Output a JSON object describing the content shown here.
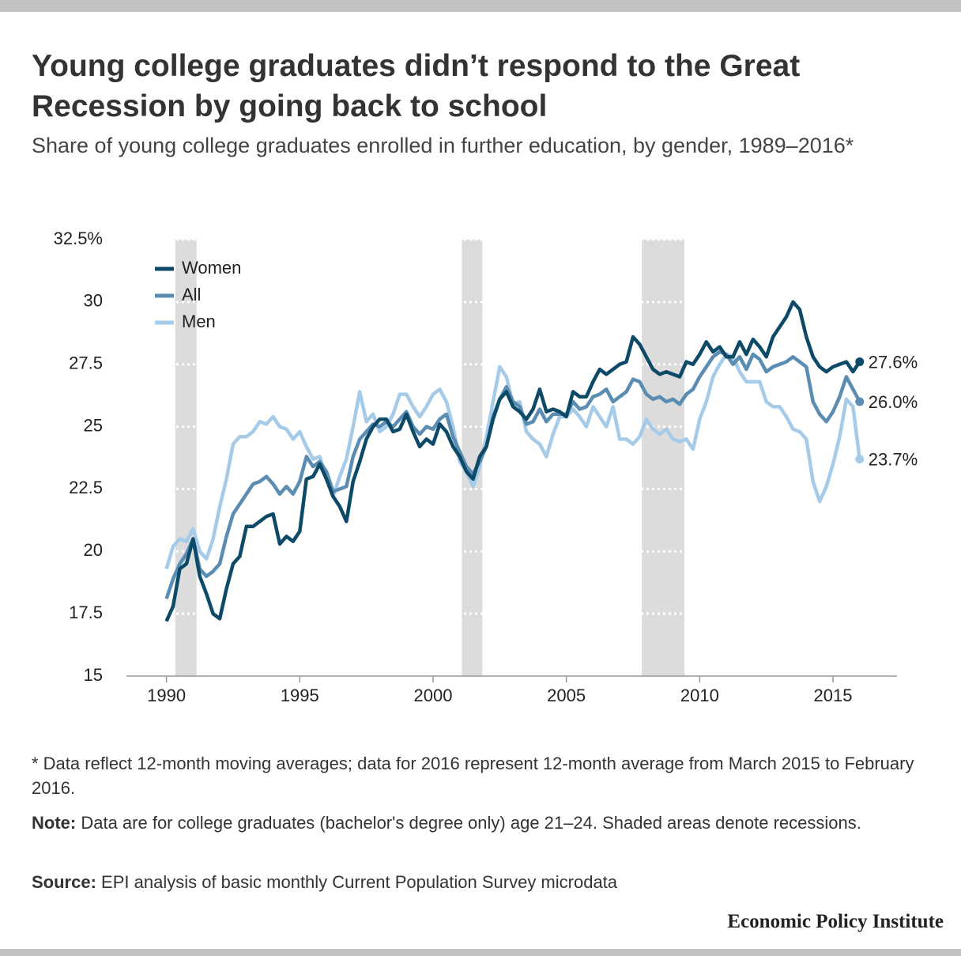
{
  "chart_data": {
    "type": "line",
    "title": "Young college graduates didn’t respond to the Great Recession by going back to school",
    "subtitle": "Share of young college graduates enrolled in further education, by gender, 1989–2016*",
    "footnote": "* Data reflect 12-month moving averages; data for 2016 represent 12-month average from March 2015 to February 2016.",
    "note": {
      "label": "Note:",
      "text": "Data are for college graduates (bachelor's degree only) age 21–24. Shaded areas denote recessions."
    },
    "source": {
      "label": "Source:",
      "text": "EPI analysis of basic monthly Current Population Survey microdata"
    },
    "publisher": "Economic Policy Institute",
    "xlim": [
      1988.5,
      2017.4
    ],
    "ylim": [
      15,
      32.5
    ],
    "xticks": [
      1990,
      1995,
      2000,
      2005,
      2010,
      2015
    ],
    "yticks": [
      {
        "value": 32.5,
        "label": "32.5%"
      },
      30,
      27.5,
      25,
      22.5,
      20,
      17.5,
      15
    ],
    "grid": true,
    "legend": "upper left",
    "recessions": [
      [
        1990.33,
        1991.13
      ],
      [
        2001.08,
        2001.85
      ],
      [
        2007.83,
        2009.43
      ]
    ],
    "x": [
      1990,
      1990.25,
      1990.5,
      1990.75,
      1991,
      1991.25,
      1991.5,
      1991.75,
      1992,
      1992.25,
      1992.5,
      1992.75,
      1993,
      1993.25,
      1993.5,
      1993.75,
      1994,
      1994.25,
      1994.5,
      1994.75,
      1995,
      1995.25,
      1995.5,
      1995.75,
      1996,
      1996.25,
      1996.5,
      1996.75,
      1997,
      1997.25,
      1997.5,
      1997.75,
      1998,
      1998.25,
      1998.5,
      1998.75,
      1999,
      1999.25,
      1999.5,
      1999.75,
      2000,
      2000.25,
      2000.5,
      2000.75,
      2001,
      2001.25,
      2001.5,
      2001.75,
      2002,
      2002.25,
      2002.5,
      2002.75,
      2003,
      2003.25,
      2003.5,
      2003.75,
      2004,
      2004.25,
      2004.5,
      2004.75,
      2005,
      2005.25,
      2005.5,
      2005.75,
      2006,
      2006.25,
      2006.5,
      2006.75,
      2007,
      2007.25,
      2007.5,
      2007.75,
      2008,
      2008.25,
      2008.5,
      2008.75,
      2009,
      2009.25,
      2009.5,
      2009.75,
      2010,
      2010.25,
      2010.5,
      2010.75,
      2011,
      2011.25,
      2011.5,
      2011.75,
      2012,
      2012.25,
      2012.5,
      2012.75,
      2013,
      2013.25,
      2013.5,
      2013.75,
      2014,
      2014.25,
      2014.5,
      2014.75,
      2015,
      2015.25,
      2015.5,
      2015.75,
      2016
    ],
    "series": [
      {
        "name": "Women",
        "color": "#0d4a68",
        "end_label": "27.6%",
        "values": [
          17.2,
          17.8,
          19.3,
          19.5,
          20.5,
          19.0,
          18.3,
          17.5,
          17.3,
          18.5,
          19.5,
          19.8,
          21.0,
          21.0,
          21.2,
          21.4,
          21.5,
          20.3,
          20.6,
          20.4,
          20.8,
          22.9,
          23.0,
          23.5,
          22.9,
          22.2,
          21.8,
          21.2,
          22.8,
          23.6,
          24.5,
          25.0,
          25.3,
          25.3,
          24.8,
          24.9,
          25.5,
          24.8,
          24.2,
          24.5,
          24.3,
          25.1,
          24.8,
          24.2,
          23.8,
          23.2,
          22.9,
          23.8,
          24.2,
          25.3,
          26.1,
          26.4,
          25.8,
          25.6,
          25.3,
          25.7,
          26.5,
          25.6,
          25.7,
          25.6,
          25.4,
          26.4,
          26.2,
          26.2,
          26.8,
          27.3,
          27.1,
          27.3,
          27.5,
          27.6,
          28.6,
          28.3,
          27.8,
          27.3,
          27.1,
          27.2,
          27.1,
          27.0,
          27.6,
          27.5,
          27.9,
          28.4,
          28.0,
          28.2,
          27.8,
          27.8,
          28.4,
          27.9,
          28.5,
          28.2,
          27.8,
          28.6,
          29.0,
          29.4,
          30.0,
          29.7,
          28.6,
          27.8,
          27.4,
          27.2,
          27.4,
          27.5,
          27.6,
          27.2,
          27.6
        ]
      },
      {
        "name": "All",
        "color": "#5b8db2",
        "end_label": "26.0%",
        "values": [
          18.1,
          18.9,
          19.5,
          19.9,
          20.5,
          19.3,
          19.0,
          19.2,
          19.5,
          20.6,
          21.5,
          21.9,
          22.3,
          22.7,
          22.8,
          23.0,
          22.7,
          22.3,
          22.6,
          22.3,
          22.8,
          23.8,
          23.4,
          23.6,
          23.2,
          22.4,
          22.5,
          22.6,
          23.8,
          24.5,
          24.8,
          25.1,
          25.0,
          25.2,
          25.0,
          25.3,
          25.6,
          25.0,
          24.7,
          25.0,
          24.9,
          25.3,
          25.5,
          24.6,
          24.0,
          23.4,
          23.1,
          23.6,
          24.2,
          25.4,
          26.1,
          26.6,
          26.0,
          25.8,
          25.1,
          25.2,
          25.7,
          25.2,
          25.5,
          25.5,
          25.5,
          26.0,
          25.7,
          25.8,
          26.2,
          26.3,
          26.5,
          26.0,
          26.2,
          26.4,
          26.9,
          26.8,
          26.3,
          26.1,
          26.2,
          26.0,
          26.1,
          25.9,
          26.3,
          26.5,
          27.0,
          27.4,
          27.8,
          28.0,
          27.9,
          27.5,
          27.8,
          27.3,
          27.9,
          27.7,
          27.2,
          27.4,
          27.5,
          27.6,
          27.8,
          27.6,
          27.4,
          26.0,
          25.5,
          25.2,
          25.6,
          26.2,
          27.0,
          26.5,
          26.0
        ]
      },
      {
        "name": "Men",
        "color": "#a6cbe8",
        "end_label": "23.7%",
        "values": [
          19.3,
          20.2,
          20.5,
          20.4,
          20.9,
          20.0,
          19.7,
          20.5,
          21.8,
          22.9,
          24.3,
          24.6,
          24.6,
          24.8,
          25.2,
          25.1,
          25.4,
          25.0,
          24.9,
          24.5,
          24.8,
          24.2,
          23.7,
          23.8,
          22.9,
          22.2,
          23.0,
          23.7,
          25.0,
          26.4,
          25.2,
          25.5,
          24.8,
          25.0,
          25.5,
          26.3,
          26.3,
          25.8,
          25.4,
          25.8,
          26.3,
          26.5,
          26.0,
          25.0,
          23.6,
          23.2,
          22.6,
          23.4,
          24.6,
          26.0,
          27.4,
          27.0,
          25.9,
          26.0,
          24.8,
          24.5,
          24.3,
          23.8,
          24.7,
          25.4,
          25.4,
          25.7,
          25.4,
          25.0,
          25.8,
          25.4,
          25.0,
          25.8,
          24.5,
          24.5,
          24.3,
          24.6,
          25.3,
          24.9,
          24.7,
          24.9,
          24.5,
          24.4,
          24.5,
          24.1,
          25.3,
          26.0,
          27.0,
          27.5,
          27.9,
          27.8,
          27.2,
          26.8,
          26.8,
          26.8,
          26.0,
          25.8,
          25.8,
          25.4,
          24.9,
          24.8,
          24.5,
          22.8,
          22.0,
          22.6,
          23.5,
          24.6,
          26.1,
          25.8,
          23.7
        ]
      }
    ]
  }
}
